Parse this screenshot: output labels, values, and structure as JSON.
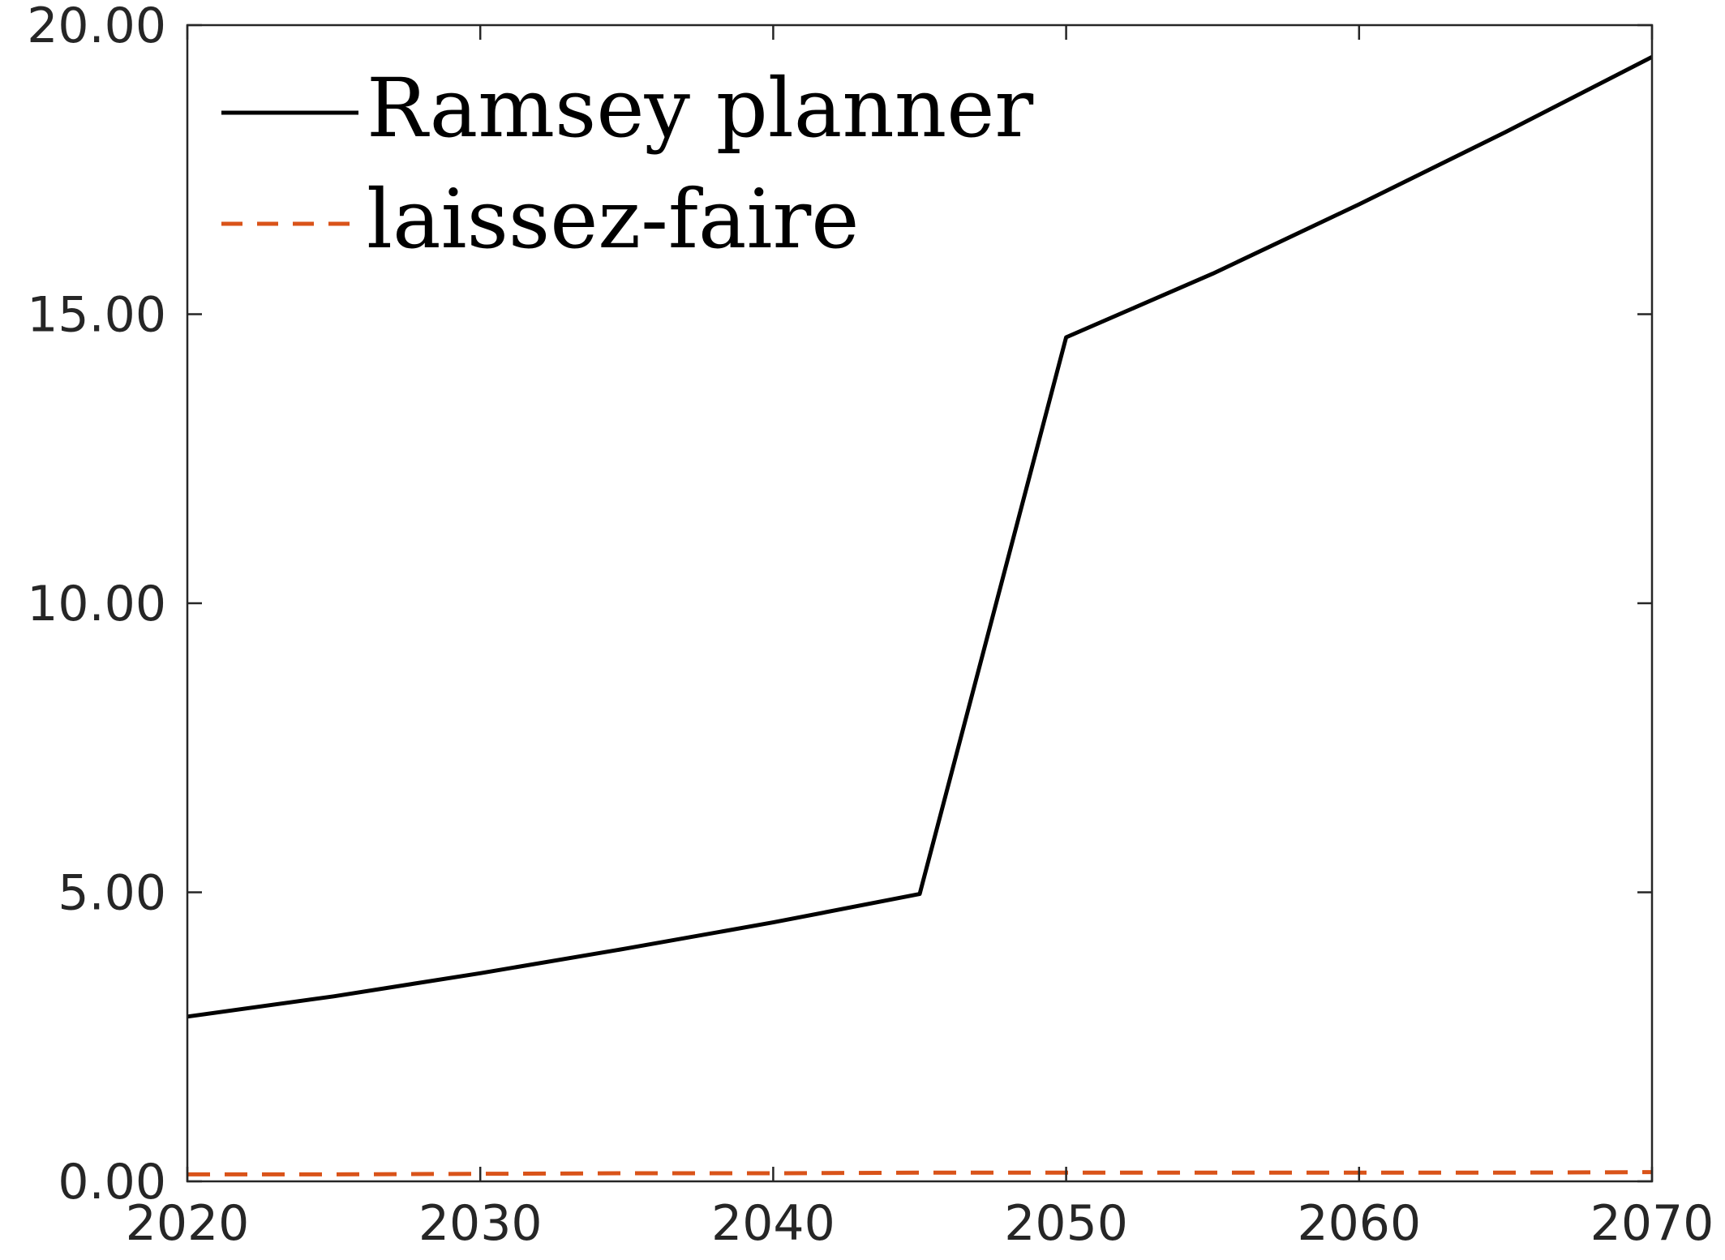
{
  "chart_data": {
    "type": "line",
    "title": "",
    "xlabel": "",
    "ylabel": "",
    "xlim": [
      2020,
      2070
    ],
    "ylim": [
      0,
      20
    ],
    "x_ticks": [
      2020,
      2030,
      2040,
      2050,
      2060,
      2070
    ],
    "x_tick_labels": [
      "2020",
      "2030",
      "2040",
      "2050",
      "2060",
      "2070"
    ],
    "y_ticks": [
      0,
      5,
      10,
      15,
      20
    ],
    "y_tick_labels": [
      "0.00",
      "5.00",
      "10.00",
      "15.00",
      "20.00"
    ],
    "grid": false,
    "legend_position": "top-left",
    "series": [
      {
        "name": "Ramsey planner",
        "color": "#000000",
        "dash": "solid",
        "x": [
          2020,
          2025,
          2030,
          2035,
          2040,
          2045,
          2050,
          2055,
          2060,
          2065,
          2070
        ],
        "y": [
          2.85,
          3.2,
          3.6,
          4.03,
          4.48,
          4.97,
          14.6,
          15.7,
          16.9,
          18.15,
          19.45
        ]
      },
      {
        "name": "laissez-faire",
        "color": "#D95319",
        "dash": "dashed",
        "x": [
          2020,
          2025,
          2030,
          2035,
          2040,
          2045,
          2050,
          2055,
          2060,
          2065,
          2070
        ],
        "y": [
          0.12,
          0.12,
          0.13,
          0.14,
          0.14,
          0.15,
          0.15,
          0.15,
          0.15,
          0.15,
          0.16
        ]
      }
    ]
  }
}
